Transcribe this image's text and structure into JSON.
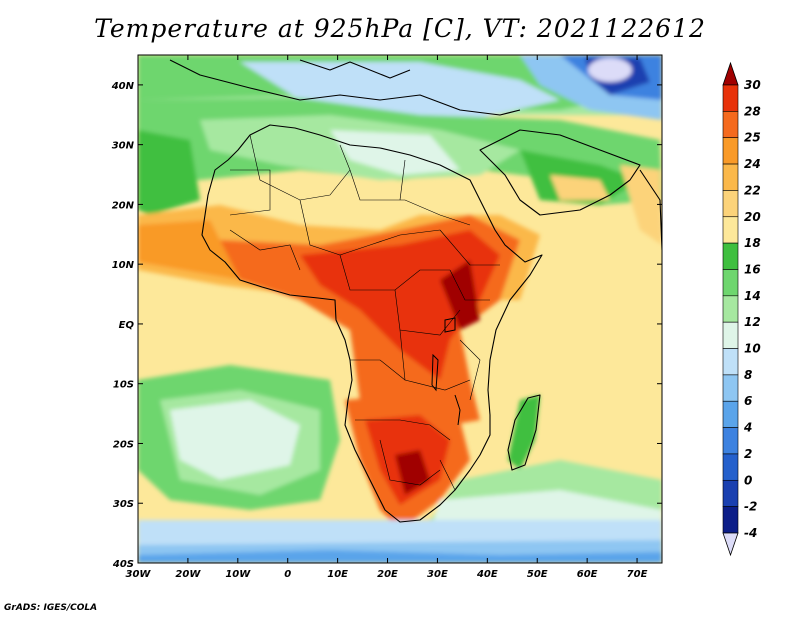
{
  "title": "Temperature at 925hPa [C], VT: 2021122612",
  "credit": "GrADS: IGES/COLA",
  "map": {
    "region": "Africa",
    "projection": "lat-lon",
    "lon_range": [
      -30,
      75
    ],
    "lat_range": [
      -40,
      45
    ],
    "x_ticks": [
      "30W",
      "20W",
      "10W",
      "0",
      "10E",
      "20E",
      "30E",
      "40E",
      "50E",
      "60E",
      "70E"
    ],
    "y_ticks": [
      "40N",
      "30N",
      "20N",
      "10N",
      "EQ",
      "10S",
      "20S",
      "30S",
      "40S"
    ]
  },
  "colorbar": {
    "labels": [
      "30",
      "28",
      "25",
      "24",
      "22",
      "20",
      "18",
      "16",
      "14",
      "12",
      "10",
      "8",
      "6",
      "4",
      "2",
      "0",
      "-2",
      "-4"
    ],
    "colors": [
      "#a00000",
      "#e8320a",
      "#f56a1e",
      "#f99a28",
      "#fbb84a",
      "#fcd37a",
      "#fde89a",
      "#3fbf3f",
      "#6ed66e",
      "#a6e8a0",
      "#dff5e8",
      "#bfe0f8",
      "#8ec6f2",
      "#5aa4ea",
      "#3d82e0",
      "#2460cc",
      "#1a40b0",
      "#0c1e88",
      "#dcdcf8"
    ]
  }
}
